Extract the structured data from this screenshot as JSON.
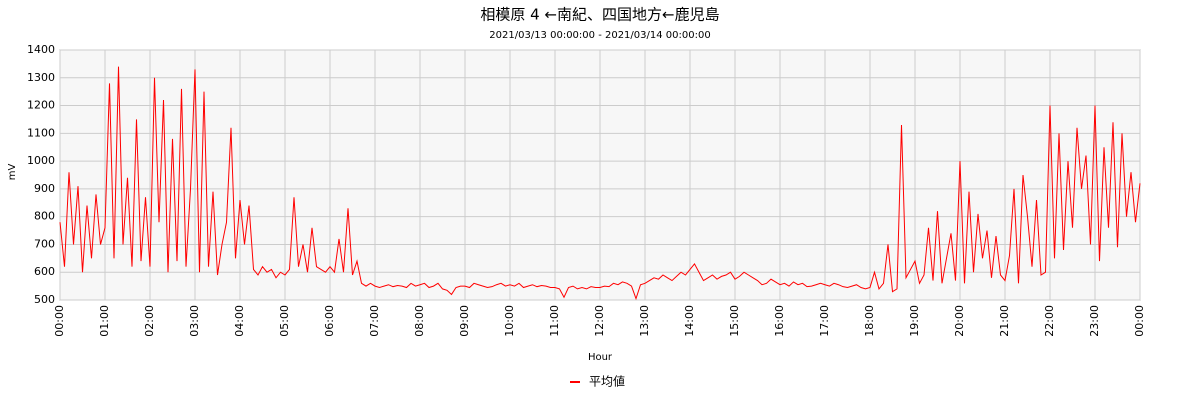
{
  "chart_data": {
    "type": "line",
    "title": "相模原 4 ←南紀、四国地方←鹿児島",
    "subtitle": "2021/03/13 00:00:00 - 2021/03/14 00:00:00",
    "x_label": "Hour",
    "y_label": "mV",
    "xlim": [
      0,
      24
    ],
    "xticks": [
      {
        "value": 0,
        "label": "00:00"
      },
      {
        "value": 1,
        "label": "01:00"
      },
      {
        "value": 2,
        "label": "02:00"
      },
      {
        "value": 3,
        "label": "03:00"
      },
      {
        "value": 4,
        "label": "04:00"
      },
      {
        "value": 5,
        "label": "05:00"
      },
      {
        "value": 6,
        "label": "06:00"
      },
      {
        "value": 7,
        "label": "07:00"
      },
      {
        "value": 8,
        "label": "08:00"
      },
      {
        "value": 9,
        "label": "09:00"
      },
      {
        "value": 10,
        "label": "10:00"
      },
      {
        "value": 11,
        "label": "11:00"
      },
      {
        "value": 12,
        "label": "12:00"
      },
      {
        "value": 13,
        "label": "13:00"
      },
      {
        "value": 14,
        "label": "14:00"
      },
      {
        "value": 15,
        "label": "15:00"
      },
      {
        "value": 16,
        "label": "16:00"
      },
      {
        "value": 17,
        "label": "17:00"
      },
      {
        "value": 18,
        "label": "18:00"
      },
      {
        "value": 19,
        "label": "19:00"
      },
      {
        "value": 20,
        "label": "20:00"
      },
      {
        "value": 21,
        "label": "21:00"
      },
      {
        "value": 22,
        "label": "22:00"
      },
      {
        "value": 23,
        "label": "23:00"
      },
      {
        "value": 24,
        "label": "00:00"
      }
    ],
    "ylim": [
      500,
      1400
    ],
    "yticks": [
      500,
      600,
      700,
      800,
      900,
      1000,
      1100,
      1200,
      1300,
      1400
    ],
    "grid": true,
    "legend": "bottom",
    "x": [
      0,
      0.1,
      0.2,
      0.3,
      0.4,
      0.5,
      0.6,
      0.7,
      0.8,
      0.9,
      1,
      1.1,
      1.2,
      1.3,
      1.4,
      1.5,
      1.6,
      1.7,
      1.8,
      1.9,
      2,
      2.1,
      2.2,
      2.3,
      2.4,
      2.5,
      2.6,
      2.7,
      2.8,
      2.9,
      3,
      3.1,
      3.2,
      3.3,
      3.4,
      3.5,
      3.6,
      3.7,
      3.8,
      3.9,
      4,
      4.1,
      4.2,
      4.3,
      4.4,
      4.5,
      4.6,
      4.7,
      4.8,
      4.9,
      5,
      5.1,
      5.2,
      5.3,
      5.4,
      5.5,
      5.6,
      5.7,
      5.8,
      5.9,
      6,
      6.1,
      6.2,
      6.3,
      6.4,
      6.5,
      6.6,
      6.7,
      6.8,
      6.9,
      7,
      7.1,
      7.2,
      7.3,
      7.4,
      7.5,
      7.6,
      7.7,
      7.8,
      7.9,
      8,
      8.1,
      8.2,
      8.3,
      8.4,
      8.5,
      8.6,
      8.7,
      8.8,
      8.9,
      9,
      9.1,
      9.2,
      9.3,
      9.4,
      9.5,
      9.6,
      9.7,
      9.8,
      9.9,
      10,
      10.1,
      10.2,
      10.3,
      10.4,
      10.5,
      10.6,
      10.7,
      10.8,
      10.9,
      11,
      11.1,
      11.2,
      11.3,
      11.4,
      11.5,
      11.6,
      11.7,
      11.8,
      11.9,
      12,
      12.1,
      12.2,
      12.3,
      12.4,
      12.5,
      12.6,
      12.7,
      12.8,
      12.9,
      13,
      13.1,
      13.2,
      13.3,
      13.4,
      13.5,
      13.6,
      13.7,
      13.8,
      13.9,
      14,
      14.1,
      14.2,
      14.3,
      14.4,
      14.5,
      14.6,
      14.7,
      14.8,
      14.9,
      15,
      15.1,
      15.2,
      15.3,
      15.4,
      15.5,
      15.6,
      15.7,
      15.8,
      15.9,
      16,
      16.1,
      16.2,
      16.3,
      16.4,
      16.5,
      16.6,
      16.7,
      16.8,
      16.9,
      17,
      17.1,
      17.2,
      17.3,
      17.4,
      17.5,
      17.6,
      17.7,
      17.8,
      17.9,
      18,
      18.1,
      18.2,
      18.3,
      18.4,
      18.5,
      18.6,
      18.7,
      18.8,
      18.9,
      19,
      19.1,
      19.2,
      19.3,
      19.4,
      19.5,
      19.6,
      19.7,
      19.8,
      19.9,
      20,
      20.1,
      20.2,
      20.3,
      20.4,
      20.5,
      20.6,
      20.7,
      20.8,
      20.9,
      21,
      21.1,
      21.2,
      21.3,
      21.4,
      21.5,
      21.6,
      21.7,
      21.8,
      21.9,
      22,
      22.1,
      22.2,
      22.3,
      22.4,
      22.5,
      22.6,
      22.7,
      22.8,
      22.9,
      23,
      23.1,
      23.2,
      23.3,
      23.4,
      23.5,
      23.6,
      23.7,
      23.8,
      23.9,
      24
    ],
    "series": [
      {
        "name": "平均値",
        "color": "#ff0000",
        "values": [
          780,
          620,
          960,
          700,
          910,
          600,
          840,
          650,
          880,
          700,
          760,
          1280,
          650,
          1340,
          700,
          940,
          620,
          1150,
          640,
          870,
          620,
          1300,
          780,
          1220,
          600,
          1080,
          640,
          1260,
          620,
          900,
          1330,
          600,
          1250,
          620,
          890,
          590,
          700,
          780,
          1120,
          650,
          860,
          700,
          840,
          610,
          590,
          620,
          600,
          610,
          580,
          600,
          590,
          610,
          870,
          620,
          700,
          600,
          760,
          620,
          610,
          600,
          620,
          600,
          720,
          600,
          830,
          590,
          640,
          560,
          550,
          560,
          550,
          545,
          550,
          555,
          548,
          552,
          550,
          545,
          560,
          550,
          555,
          560,
          545,
          550,
          560,
          540,
          535,
          520,
          545,
          550,
          550,
          545,
          560,
          555,
          550,
          545,
          548,
          555,
          560,
          550,
          555,
          550,
          560,
          545,
          550,
          555,
          548,
          552,
          550,
          545,
          545,
          540,
          510,
          545,
          550,
          540,
          545,
          540,
          548,
          545,
          545,
          550,
          548,
          560,
          555,
          565,
          560,
          550,
          505,
          555,
          560,
          570,
          580,
          575,
          590,
          580,
          570,
          585,
          600,
          590,
          610,
          630,
          600,
          570,
          580,
          590,
          575,
          585,
          590,
          600,
          575,
          585,
          600,
          590,
          580,
          570,
          555,
          560,
          575,
          565,
          555,
          560,
          550,
          565,
          555,
          560,
          548,
          550,
          555,
          560,
          555,
          550,
          560,
          555,
          548,
          545,
          550,
          555,
          545,
          540,
          545,
          600,
          540,
          560,
          700,
          530,
          540,
          1130,
          580,
          610,
          640,
          560,
          590,
          760,
          570,
          820,
          560,
          650,
          740,
          570,
          1000,
          560,
          890,
          600,
          810,
          650,
          750,
          580,
          730,
          590,
          570,
          660,
          900,
          560,
          950,
          800,
          620,
          860,
          590,
          600,
          1200,
          650,
          1100,
          680,
          1000,
          760,
          1120,
          900,
          1020,
          700,
          1200,
          640,
          1050,
          760,
          1140,
          690,
          1100,
          800,
          960,
          780,
          920
        ]
      }
    ]
  }
}
